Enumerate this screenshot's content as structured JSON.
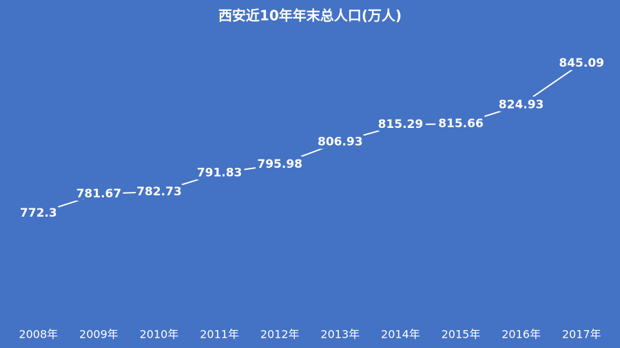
{
  "chart_data": {
    "type": "line",
    "title": "西安近10年年末总人口(万人)",
    "categories": [
      "2008年",
      "2009年",
      "2010年",
      "2011年",
      "2012年",
      "2013年",
      "2014年",
      "2015年",
      "2016年",
      "2017年"
    ],
    "values": [
      772.3,
      781.67,
      782.73,
      791.83,
      795.98,
      806.93,
      815.29,
      815.66,
      824.93,
      845.09
    ],
    "color": "#ffffff",
    "background": "#4472c4"
  }
}
